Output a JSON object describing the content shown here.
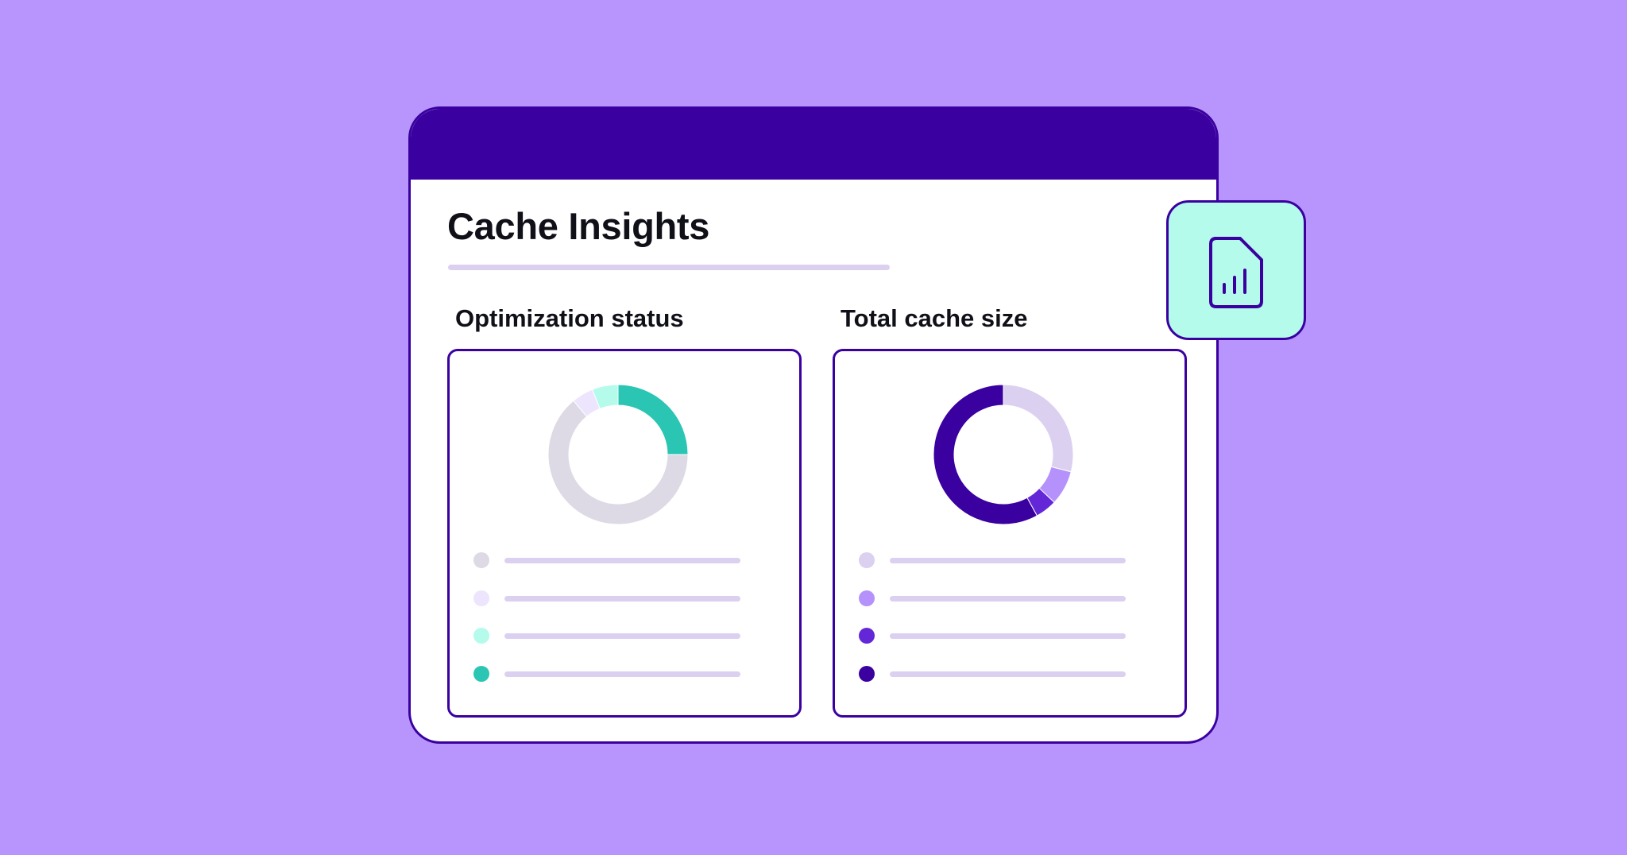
{
  "page": {
    "title": "Cache Insights"
  },
  "colors": {
    "background": "#b795fd",
    "window_border": "#3a00a0",
    "titlebar": "#3a00a0",
    "placeholder_line": "#dcd0f1",
    "badge_fill": "#b4fbec"
  },
  "icons": {
    "badge": "chart-document-icon"
  },
  "panels": [
    {
      "id": "optimization",
      "title": "Optimization status",
      "ring_gap_color": "#ffffff",
      "segments": [
        {
          "color": "#2ac5b3",
          "value": 0.25
        },
        {
          "color": "#dddae6",
          "value": 0.64
        },
        {
          "color": "#ede5fd",
          "value": 0.05
        },
        {
          "color": "#b4fbec",
          "value": 0.06
        }
      ],
      "legend": [
        {
          "color": "#dddae6"
        },
        {
          "color": "#ede5fd"
        },
        {
          "color": "#b4fbec"
        },
        {
          "color": "#2ac5b3"
        }
      ]
    },
    {
      "id": "cache-size",
      "title": "Total cache size",
      "ring_gap_color": "#ffffff",
      "segments": [
        {
          "color": "#dcd0f1",
          "value": 0.29
        },
        {
          "color": "#b491fb",
          "value": 0.08
        },
        {
          "color": "#6427d8",
          "value": 0.05
        },
        {
          "color": "#3a00a0",
          "value": 0.58
        }
      ],
      "legend": [
        {
          "color": "#dcd0f1"
        },
        {
          "color": "#b491fb"
        },
        {
          "color": "#6427d8"
        },
        {
          "color": "#3a00a0"
        }
      ]
    }
  ]
}
